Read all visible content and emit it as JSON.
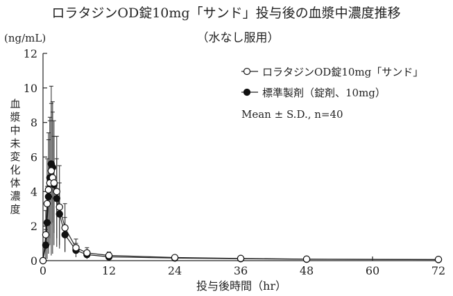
{
  "chart_data": {
    "type": "line",
    "title": "ロラタジンOD錠10mg「サンド」投与後の血漿中濃度推移",
    "subtitle": "（水なし服用）",
    "y_unit": "(ng/mL)",
    "ylabel": "血漿中未変化体濃度",
    "xlabel": "投与後時間（hr）",
    "xlim": [
      0,
      72
    ],
    "ylim": [
      0,
      12
    ],
    "x_ticks": [
      0,
      12,
      24,
      36,
      48,
      60,
      72
    ],
    "y_ticks": [
      0,
      2,
      4,
      6,
      8,
      10,
      12
    ],
    "grid": false,
    "legend_position": "top-right",
    "annotation": "Mean ± S.D., n=40",
    "series": [
      {
        "name": "ロラタジンOD錠10mg「サンド」",
        "marker": "open-circle",
        "x": [
          0,
          0.5,
          0.75,
          1,
          1.25,
          1.5,
          1.75,
          2,
          2.5,
          3,
          4,
          6,
          8,
          12,
          24,
          36,
          48,
          72
        ],
        "y": [
          0,
          1.5,
          3.3,
          4.1,
          4.5,
          5.2,
          4.8,
          4.5,
          4.0,
          3.1,
          1.9,
          0.75,
          0.45,
          0.3,
          0.18,
          0.13,
          0.09,
          0.07
        ],
        "sd": [
          0,
          1.4,
          2.6,
          3.3,
          3.6,
          4.9,
          4.4,
          3.6,
          3.2,
          2.4,
          1.4,
          0.5,
          0.3,
          0.2,
          0.1,
          0.07,
          0.05,
          0.04
        ]
      },
      {
        "name": "標準製剤（錠剤、10mg）",
        "marker": "filled-circle",
        "x": [
          0,
          0.5,
          0.75,
          1,
          1.25,
          1.5,
          1.75,
          2,
          2.5,
          3,
          4,
          6,
          8,
          12,
          24,
          36,
          48,
          72
        ],
        "y": [
          0,
          0.9,
          2.2,
          3.7,
          4.8,
          5.6,
          5.4,
          4.4,
          3.6,
          2.7,
          1.5,
          0.6,
          0.35,
          0.22,
          0.15,
          0.11,
          0.08,
          0.06
        ],
        "sd": [
          0,
          0.9,
          2.1,
          3.3,
          3.5,
          3.5,
          3.2,
          2.8,
          2.3,
          1.8,
          1.0,
          0.4,
          0.25,
          0.15,
          0.08,
          0.06,
          0.04,
          0.03
        ]
      }
    ]
  }
}
